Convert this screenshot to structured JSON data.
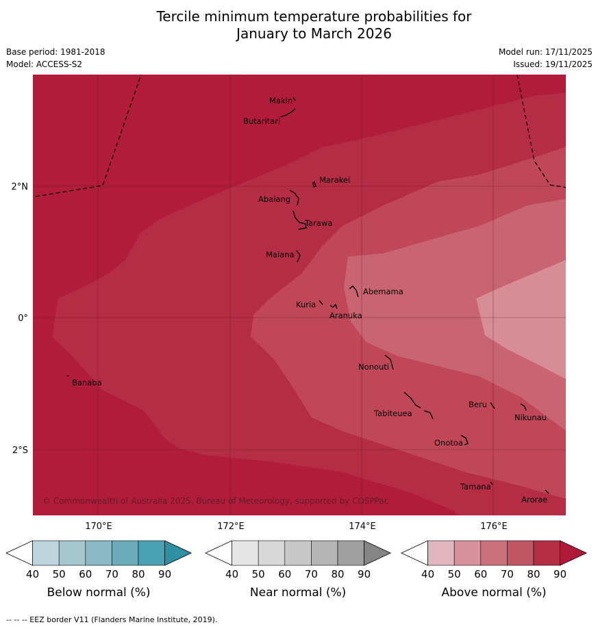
{
  "title_line1": "Tercile minimum temperature probabilities for",
  "title_line2": "January to March 2026",
  "meta": {
    "base_period": "Base period: 1981-2018",
    "model": "Model: ACCESS-S2",
    "model_run": "Model run: 17/11/2025",
    "issued": "Issued: 19/11/2025"
  },
  "axes": {
    "lon_ticks": [
      "170°E",
      "172°E",
      "174°E",
      "176°E"
    ],
    "lat_ticks": [
      "2°N",
      "0°",
      "2°S"
    ]
  },
  "places": [
    "Makin",
    "Butaritari",
    "Marakei",
    "Abaiang",
    "Tarawa",
    "Maiana",
    "Abemama",
    "Kuria",
    "Aranuka",
    "Banaba",
    "Nonouti",
    "Beru",
    "Nikunau",
    "Tabiteuea",
    "Onotoa",
    "Tamana",
    "Arorae"
  ],
  "copyright": "© Commonwealth of Australia 2025, Bureau of Meteorology, supported by COSPPac",
  "colorbars": [
    {
      "title": "Below normal (%)",
      "ticks": [
        "40",
        "50",
        "60",
        "70",
        "80",
        "90"
      ],
      "colors": [
        "#ffffff",
        "#bed4db",
        "#a5c6cd",
        "#8bb9c4",
        "#6cacbb",
        "#48a2b2",
        "#2f8fa3"
      ]
    },
    {
      "title": "Near normal (%)",
      "ticks": [
        "40",
        "50",
        "60",
        "70",
        "80",
        "90"
      ],
      "colors": [
        "#ffffff",
        "#e6e6e6",
        "#d8d8d8",
        "#c8c8c8",
        "#b5b5b5",
        "#a0a0a0",
        "#858585"
      ]
    },
    {
      "title": "Above normal (%)",
      "ticks": [
        "40",
        "50",
        "60",
        "70",
        "80",
        "90"
      ],
      "colors": [
        "#ffffff",
        "#e2b6bf",
        "#d6939d",
        "#cb717d",
        "#c05564",
        "#b52d44",
        "#b01a3a"
      ]
    }
  ],
  "footnote": "--  --  -- EEZ border V11 (Flanders Marine Institute, 2019)."
}
